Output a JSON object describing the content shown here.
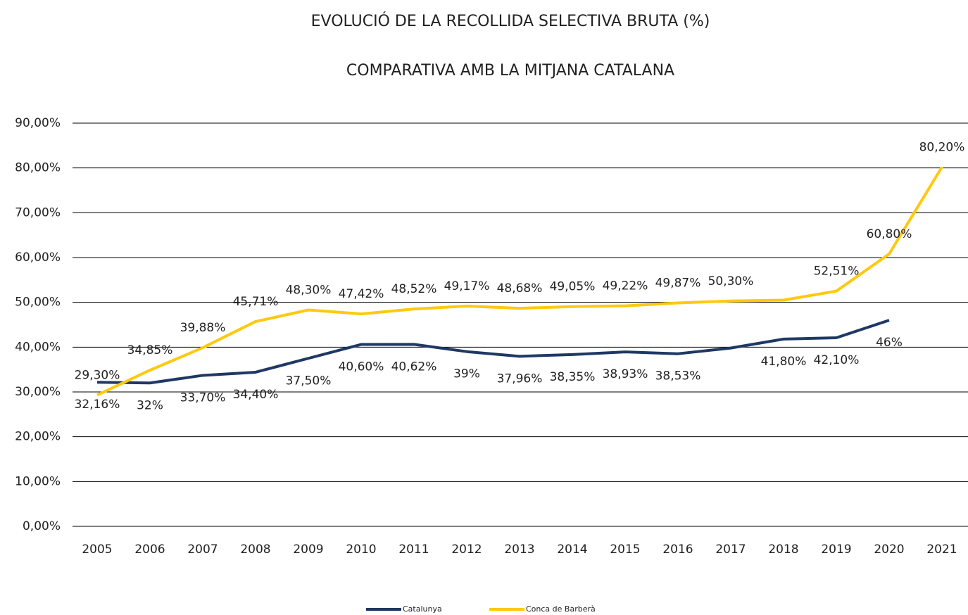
{
  "chart_data": {
    "type": "line",
    "title": "EVOLUCIÓ DE LA RECOLLIDA SELECTIVA BRUTA (%)",
    "subtitle": "COMPARATIVA AMB LA MITJANA CATALANA",
    "categories": [
      "2005",
      "2006",
      "2007",
      "2008",
      "2009",
      "2010",
      "2011",
      "2012",
      "2013",
      "2014",
      "2015",
      "2016",
      "2017",
      "2018",
      "2019",
      "2020",
      "2021"
    ],
    "series": [
      {
        "name": "Catalunya",
        "color": "#1f3864",
        "values": [
          32.16,
          32,
          33.7,
          34.4,
          37.5,
          40.6,
          40.62,
          39,
          37.96,
          38.35,
          38.93,
          38.53,
          39.8,
          41.8,
          42.1,
          46,
          null
        ],
        "value_labels": [
          "32,16%",
          "32%",
          "33,70%",
          "34,40%",
          "37,50%",
          "40,60%",
          "40,62%",
          "39%",
          "37,96%",
          "38,35%",
          "38,93%",
          "38,53%",
          null,
          "41,80%",
          "42,10%",
          "46%",
          null
        ]
      },
      {
        "name": "Conca de Barberà",
        "color": "#ffc90e",
        "values": [
          29.3,
          34.85,
          39.88,
          45.71,
          48.3,
          47.42,
          48.52,
          49.17,
          48.68,
          49.05,
          49.22,
          49.87,
          50.3,
          50.5,
          52.51,
          60.8,
          80.2
        ],
        "value_labels": [
          "29,30%",
          "34,85%",
          "39,88%",
          "45,71%",
          "48,30%",
          "47,42%",
          "48,52%",
          "49,17%",
          "48,68%",
          "49,05%",
          "49,22%",
          "49,87%",
          "50,30%",
          null,
          "52,51%",
          "60,80%",
          "80,20%"
        ]
      }
    ],
    "ylim": [
      0,
      90
    ],
    "yticks": [
      {
        "value": 0,
        "label": "0,00%"
      },
      {
        "value": 10,
        "label": "10,00%"
      },
      {
        "value": 20,
        "label": "20,00%"
      },
      {
        "value": 30,
        "label": "30,00%"
      },
      {
        "value": 40,
        "label": "40,00%"
      },
      {
        "value": 50,
        "label": "50,00%"
      },
      {
        "value": 60,
        "label": "60,00%"
      },
      {
        "value": 70,
        "label": "70,00%"
      },
      {
        "value": 80,
        "label": "80,00%"
      },
      {
        "value": 90,
        "label": "90,00%"
      }
    ],
    "grid": true,
    "legend": "bottom"
  }
}
